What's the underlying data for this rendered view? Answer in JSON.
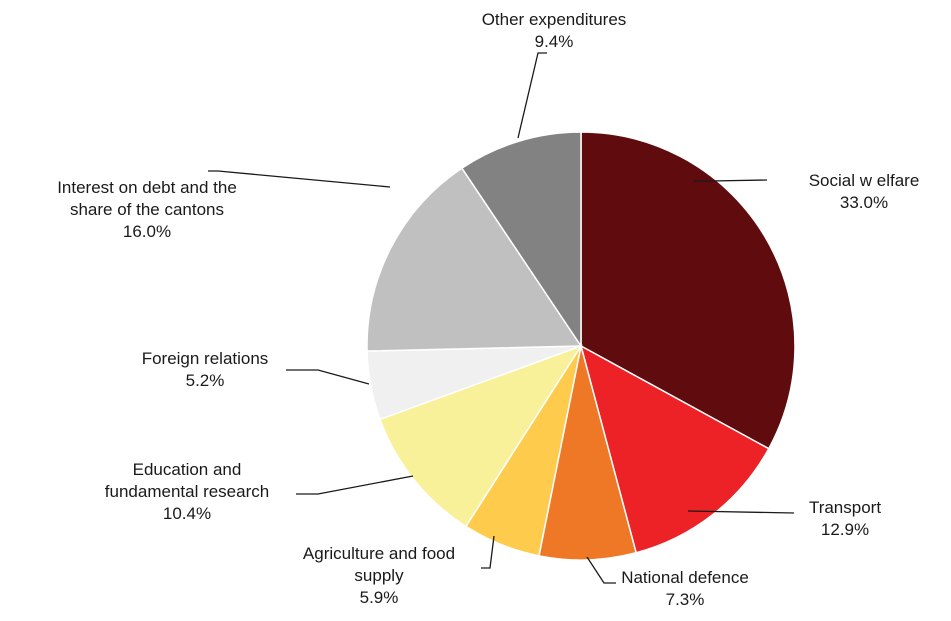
{
  "chart_data": {
    "type": "pie",
    "title": "",
    "slices": [
      {
        "label_lines": [
          "Social w elfare"
        ],
        "value_text": "33.0%",
        "value": 33.0,
        "color": "#600c0f"
      },
      {
        "label_lines": [
          "Transport"
        ],
        "value_text": "12.9%",
        "value": 12.9,
        "color": "#ec2227"
      },
      {
        "label_lines": [
          "National defence"
        ],
        "value_text": "7.3%",
        "value": 7.3,
        "color": "#ee7826"
      },
      {
        "label_lines": [
          "Agriculture and food",
          "supply"
        ],
        "value_text": "5.9%",
        "value": 5.9,
        "color": "#fecb4d"
      },
      {
        "label_lines": [
          "Education and",
          "fundamental research"
        ],
        "value_text": "10.4%",
        "value": 10.4,
        "color": "#f9f09a"
      },
      {
        "label_lines": [
          "Foreign relations"
        ],
        "value_text": "5.2%",
        "value": 5.2,
        "color": "#f0f0f0"
      },
      {
        "label_lines": [
          "Interest on debt and the",
          "share of the cantons"
        ],
        "value_text": "16.0%",
        "value": 16.0,
        "color": "#c0c0c0"
      },
      {
        "label_lines": [
          "Other expenditures"
        ],
        "value_text": "9.4%",
        "value": 9.4,
        "color": "#818281"
      }
    ]
  }
}
